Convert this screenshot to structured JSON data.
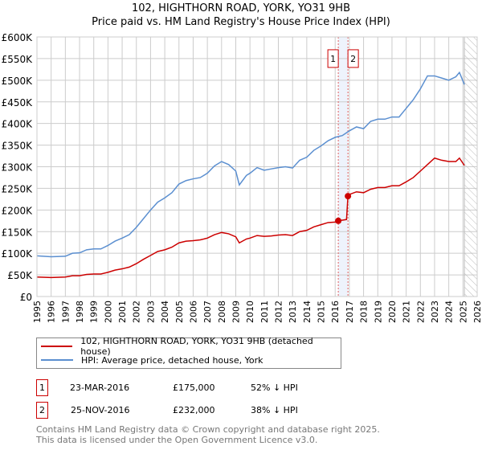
{
  "chart_data": {
    "type": "line",
    "title": "102, HIGHTHORN ROAD, YORK, YO31 9HB",
    "subtitle": "Price paid vs. HM Land Registry's House Price Index (HPI)",
    "xlim": [
      1995,
      2026
    ],
    "ylim": [
      0,
      600000
    ],
    "y_ticks": [
      0,
      50000,
      100000,
      150000,
      200000,
      250000,
      300000,
      350000,
      400000,
      450000,
      500000,
      550000,
      600000
    ],
    "y_tick_labels": [
      "£0",
      "£50K",
      "£100K",
      "£150K",
      "£200K",
      "£250K",
      "£300K",
      "£350K",
      "£400K",
      "£450K",
      "£500K",
      "£550K",
      "£600K"
    ],
    "x_ticks": [
      "1995",
      "1996",
      "1997",
      "1998",
      "1999",
      "2000",
      "2001",
      "2002",
      "2003",
      "2004",
      "2005",
      "2006",
      "2007",
      "2008",
      "2009",
      "2010",
      "2011",
      "2012",
      "2013",
      "2014",
      "2015",
      "2016",
      "2017",
      "2018",
      "2019",
      "2020",
      "2021",
      "2022",
      "2023",
      "2024",
      "2025",
      "2026"
    ],
    "grid": true,
    "series": [
      {
        "name": "102, HIGHTHORN ROAD, YORK, YO31 9HB (detached house)",
        "color": "#cc0000",
        "x": [
          1995,
          1996,
          1997,
          1997.5,
          1998,
          1998.5,
          1999,
          1999.5,
          2000,
          2000.5,
          2001,
          2001.5,
          2002,
          2002.5,
          2003,
          2003.5,
          2004,
          2004.5,
          2005,
          2005.5,
          2006,
          2006.5,
          2007,
          2007.5,
          2008,
          2008.5,
          2009,
          2009.25,
          2009.75,
          2010,
          2010.5,
          2011,
          2011.5,
          2012,
          2012.5,
          2013,
          2013.5,
          2014,
          2014.5,
          2015,
          2015.5,
          2016,
          2016.22,
          2016.8,
          2016.9,
          2017,
          2017.5,
          2018,
          2018.5,
          2019,
          2019.5,
          2020,
          2020.5,
          2021,
          2021.5,
          2022,
          2022.5,
          2023,
          2023.5,
          2024,
          2024.5,
          2024.75,
          2025.1
        ],
        "y": [
          45000,
          44000,
          45000,
          48000,
          48000,
          51000,
          52000,
          52000,
          56000,
          61000,
          64000,
          68000,
          76000,
          86000,
          95000,
          104000,
          108000,
          114000,
          124000,
          128000,
          129000,
          131000,
          135000,
          143000,
          148000,
          145000,
          138000,
          124000,
          133000,
          135000,
          141000,
          139000,
          140000,
          142000,
          143000,
          141000,
          150000,
          153000,
          161000,
          166000,
          171000,
          172000,
          175000,
          178000,
          232000,
          236000,
          242000,
          240000,
          248000,
          252000,
          252000,
          256000,
          256000,
          265000,
          275000,
          290000,
          305000,
          320000,
          315000,
          312000,
          312000,
          320000,
          303000
        ]
      },
      {
        "name": "HPI: Average price, detached house, York",
        "color": "#5b8fd0",
        "x": [
          1995,
          1996,
          1997,
          1997.5,
          1998,
          1998.5,
          1999,
          1999.5,
          2000,
          2000.5,
          2001,
          2001.5,
          2002,
          2002.5,
          2003,
          2003.5,
          2004,
          2004.5,
          2005,
          2005.5,
          2006,
          2006.5,
          2007,
          2007.5,
          2008,
          2008.5,
          2009,
          2009.25,
          2009.75,
          2010,
          2010.5,
          2011,
          2011.5,
          2012,
          2012.5,
          2013,
          2013.5,
          2014,
          2014.5,
          2015,
          2015.5,
          2016,
          2016.5,
          2017,
          2017.5,
          2018,
          2018.5,
          2019,
          2019.5,
          2020,
          2020.5,
          2021,
          2021.5,
          2022,
          2022.5,
          2023,
          2023.5,
          2024,
          2024.5,
          2024.75,
          2025.1
        ],
        "y": [
          94000,
          92000,
          93000,
          100000,
          101000,
          108000,
          110000,
          110000,
          118000,
          128000,
          135000,
          143000,
          160000,
          180000,
          200000,
          218000,
          228000,
          240000,
          260000,
          268000,
          272000,
          275000,
          285000,
          302000,
          312000,
          305000,
          290000,
          258000,
          280000,
          285000,
          298000,
          292000,
          295000,
          298000,
          300000,
          297000,
          315000,
          322000,
          338000,
          348000,
          360000,
          368000,
          372000,
          383000,
          392000,
          388000,
          405000,
          410000,
          410000,
          415000,
          415000,
          435000,
          455000,
          480000,
          510000,
          510000,
          505000,
          500000,
          508000,
          518000,
          490000
        ]
      }
    ],
    "sales": [
      {
        "n": "1",
        "date": "23-MAR-2016",
        "price": "£175,000",
        "hpi": "52% ↓ HPI",
        "x": 2016.22,
        "y": 175000
      },
      {
        "n": "2",
        "date": "25-NOV-2016",
        "price": "£232,000",
        "hpi": "38% ↓ HPI",
        "x": 2016.9,
        "y": 232000
      }
    ],
    "forecast_from": 2025.1,
    "legend_placement": "bottom"
  },
  "footer": {
    "line1": "Contains HM Land Registry data © Crown copyright and database right 2025.",
    "line2": "This data is licensed under the Open Government Licence v3.0."
  }
}
